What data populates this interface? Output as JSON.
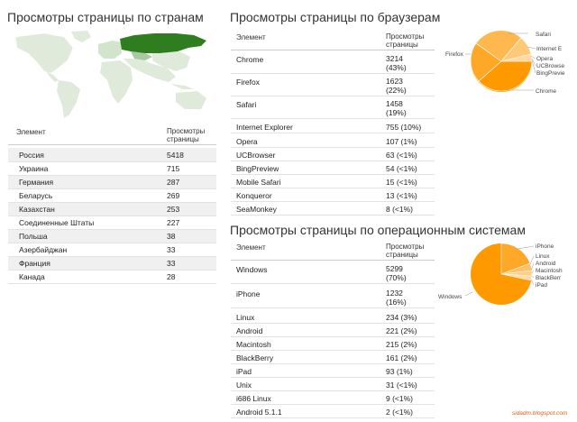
{
  "countries": {
    "title": "Просмотры страницы по странам",
    "col_element": "Элемент",
    "col_views_1": "Просмотры",
    "col_views_2": "страницы",
    "rows": [
      {
        "name": "Россия",
        "value": "5418"
      },
      {
        "name": "Украина",
        "value": "715"
      },
      {
        "name": "Германия",
        "value": "287"
      },
      {
        "name": "Беларусь",
        "value": "269"
      },
      {
        "name": "Казахстан",
        "value": "253"
      },
      {
        "name": "Соединенные Штаты",
        "value": "227"
      },
      {
        "name": "Польша",
        "value": "38"
      },
      {
        "name": "Азербайджан",
        "value": "33"
      },
      {
        "name": "Франция",
        "value": "33"
      },
      {
        "name": "Канада",
        "value": "28"
      }
    ]
  },
  "browsers": {
    "title": "Просмотры страницы по браузерам",
    "col_element": "Элемент",
    "col_views_1": "Просмотры",
    "col_views_2": "страницы",
    "rows": [
      {
        "name": "Chrome",
        "value": "3214",
        "pct": "(43%)"
      },
      {
        "name": "Firefox",
        "value": "1623",
        "pct": "(22%)"
      },
      {
        "name": "Safari",
        "value": "1458",
        "pct": "(19%)"
      },
      {
        "name": "Internet Explorer",
        "value": "755 (10%)",
        "pct": ""
      },
      {
        "name": "Opera",
        "value": "107 (1%)",
        "pct": ""
      },
      {
        "name": "UCBrowser",
        "value": "63 (<1%)",
        "pct": ""
      },
      {
        "name": "BingPreview",
        "value": "54 (<1%)",
        "pct": ""
      },
      {
        "name": "Mobile Safari",
        "value": "15 (<1%)",
        "pct": ""
      },
      {
        "name": "Konqueror",
        "value": "13 (<1%)",
        "pct": ""
      },
      {
        "name": "SeaMonkey",
        "value": "8 (<1%)",
        "pct": ""
      }
    ],
    "pie_labels": [
      "Safari",
      "Internet E",
      "Opera",
      "UCBrowse",
      "BingPrevie",
      "Chrome",
      "Firefox"
    ]
  },
  "os": {
    "title": "Просмотры страницы по операционным системам",
    "col_element": "Элемент",
    "col_views_1": "Просмотры",
    "col_views_2": "страницы",
    "rows": [
      {
        "name": "Windows",
        "value": "5299",
        "pct": "(70%)"
      },
      {
        "name": "iPhone",
        "value": "1232",
        "pct": "(16%)"
      },
      {
        "name": "Linux",
        "value": "234 (3%)",
        "pct": ""
      },
      {
        "name": "Android",
        "value": "221 (2%)",
        "pct": ""
      },
      {
        "name": "Macintosh",
        "value": "215 (2%)",
        "pct": ""
      },
      {
        "name": "BlackBerry",
        "value": "161 (2%)",
        "pct": ""
      },
      {
        "name": "iPad",
        "value": "93 (1%)",
        "pct": ""
      },
      {
        "name": "Unix",
        "value": "31 (<1%)",
        "pct": ""
      },
      {
        "name": "i686 Linux",
        "value": "9 (<1%)",
        "pct": ""
      },
      {
        "name": "Android 5.1.1",
        "value": "2 (<1%)",
        "pct": ""
      }
    ],
    "pie_labels": [
      "iPhone",
      "Linux",
      "Android",
      "Macintosh",
      "BlackBerr",
      "iPad",
      "Windows"
    ]
  },
  "watermark": "sidadm.blogspot.com",
  "colors": {
    "orange": "#ff9900",
    "map_dark": "#2e7d1f",
    "map_light": "#dcead8",
    "line": "#e2e2e2"
  }
}
